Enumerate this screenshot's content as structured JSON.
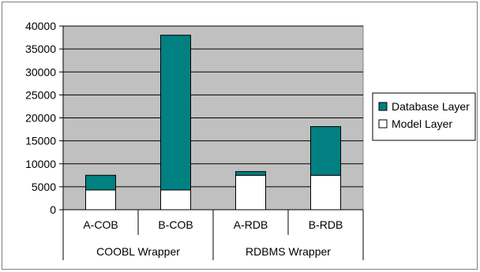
{
  "chart_data": {
    "type": "bar",
    "stacked": true,
    "categories": [
      "A-COB",
      "B-COB",
      "A-RDB",
      "B-RDB"
    ],
    "groups": [
      {
        "label": "COOBL Wrapper",
        "categories": [
          "A-COB",
          "B-COB"
        ]
      },
      {
        "label": "RDBMS Wrapper",
        "categories": [
          "A-RDB",
          "B-RDB"
        ]
      }
    ],
    "series": [
      {
        "name": "Model Layer",
        "values": [
          4300,
          4300,
          7500,
          7500
        ],
        "color": "#ffffff"
      },
      {
        "name": "Database Layer",
        "values": [
          3200,
          33700,
          800,
          10600
        ],
        "color": "#008080"
      }
    ],
    "legend_order": [
      "Database Layer",
      "Model Layer"
    ],
    "legend_position": "right",
    "ylim": [
      0,
      40000
    ],
    "yticks": [
      0,
      5000,
      10000,
      15000,
      20000,
      25000,
      30000,
      35000,
      40000
    ],
    "grid": true,
    "plot_background": "#c0c0c0",
    "title": "",
    "xlabel": "",
    "ylabel": ""
  }
}
